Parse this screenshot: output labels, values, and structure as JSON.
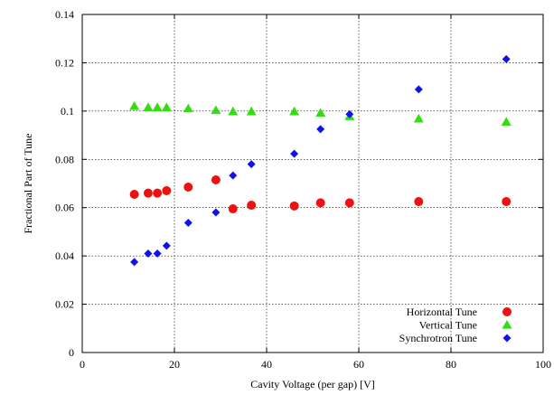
{
  "chart_data": {
    "type": "scatter",
    "xlabel": "Cavity Voltage (per gap) [V]",
    "ylabel": "Fractional Part of Tune",
    "xlim": [
      0,
      100
    ],
    "ylim": [
      0,
      0.14
    ],
    "x_ticks": [
      0,
      20,
      40,
      60,
      80,
      100
    ],
    "y_ticks": [
      0,
      0.02,
      0.04,
      0.06,
      0.08,
      0.1,
      0.12,
      0.14
    ],
    "x_tick_labels": [
      "0",
      "20",
      "40",
      "60",
      "80",
      "100"
    ],
    "y_tick_labels": [
      "0",
      "0.02",
      "0.04",
      "0.06",
      "0.08",
      "0.1",
      "0.12",
      "0.14"
    ],
    "grid": true,
    "legend_position": "bottom-right",
    "series": [
      {
        "name": "Horizontal Tune",
        "marker": "circle",
        "color": "#ee1111",
        "points": [
          [
            11.3,
            0.0655
          ],
          [
            14.3,
            0.066
          ],
          [
            16.3,
            0.066
          ],
          [
            18.3,
            0.067
          ],
          [
            23.0,
            0.0685
          ],
          [
            29.0,
            0.0715
          ],
          [
            32.7,
            0.0595
          ],
          [
            36.7,
            0.061
          ],
          [
            46.0,
            0.0607
          ],
          [
            51.7,
            0.062
          ],
          [
            58.0,
            0.062
          ],
          [
            73.0,
            0.0625
          ],
          [
            92.0,
            0.0625
          ]
        ]
      },
      {
        "name": "Vertical Tune",
        "marker": "triangle",
        "color": "#33dd11",
        "points": [
          [
            11.3,
            0.102
          ],
          [
            14.3,
            0.1015
          ],
          [
            16.3,
            0.1015
          ],
          [
            18.3,
            0.1015
          ],
          [
            23.0,
            0.101
          ],
          [
            29.0,
            0.1003
          ],
          [
            32.7,
            0.0998
          ],
          [
            36.7,
            0.0998
          ],
          [
            46.0,
            0.0998
          ],
          [
            51.7,
            0.0992
          ],
          [
            58.0,
            0.0978
          ],
          [
            73.0,
            0.0968
          ],
          [
            92.0,
            0.0955
          ]
        ]
      },
      {
        "name": "Synchrotron Tune",
        "marker": "diamond",
        "color": "#1111ee",
        "points": [
          [
            11.3,
            0.0375
          ],
          [
            14.3,
            0.041
          ],
          [
            16.3,
            0.041
          ],
          [
            18.3,
            0.0442
          ],
          [
            23.0,
            0.0537
          ],
          [
            29.0,
            0.058
          ],
          [
            32.7,
            0.0733
          ],
          [
            36.7,
            0.078
          ],
          [
            46.0,
            0.0823
          ],
          [
            51.7,
            0.0925
          ],
          [
            58.0,
            0.0987
          ],
          [
            73.0,
            0.109
          ],
          [
            92.0,
            0.1215
          ]
        ]
      }
    ]
  }
}
